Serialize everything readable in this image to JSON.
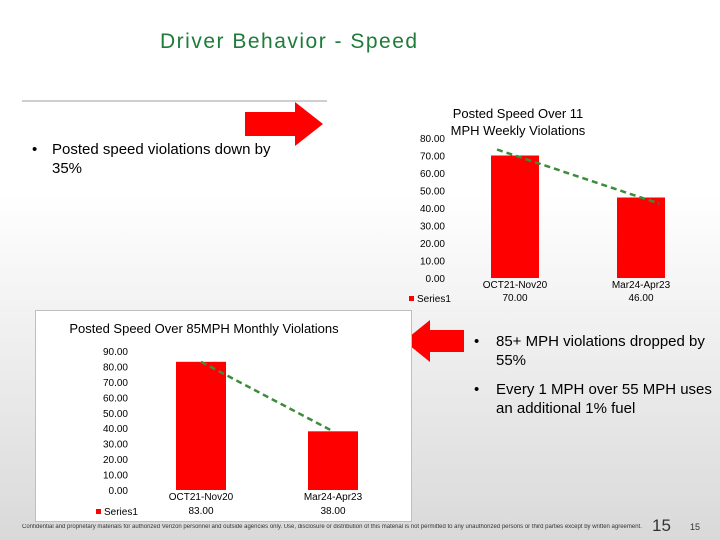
{
  "slide": {
    "title": "Driver Behavior - Speed",
    "bullets_top": [
      "Posted speed violations down by 35%"
    ],
    "bullets_right": [
      "85+ MPH violations dropped by 55%",
      "Every 1 MPH over 55 MPH uses an additional 1% fuel"
    ],
    "footer": "Confidential and proprietary materials for authorized Verizon personnel and outside agencies only. Use, disclosure or distribution of this material is not permitted to any unauthorized persons or third parties except by written agreement.",
    "page_number_large": "15",
    "page_number_small": "15"
  },
  "colors": {
    "title": "#1e7b3a",
    "bar": "#ff0000",
    "trendline": "#3c8c3c",
    "arrow": "#ff0000"
  },
  "chart_data": [
    {
      "type": "bar",
      "title": "Posted Speed Over 11 MPH Weekly Violations",
      "categories": [
        "OCT21-Nov20",
        "Mar24-Apr23"
      ],
      "series": [
        {
          "name": "Series1",
          "values": [
            70.0,
            46.0
          ]
        }
      ],
      "value_labels": [
        "70.00",
        "46.00"
      ],
      "ylim": [
        0,
        80
      ],
      "yticks": [
        "0.00",
        "10.00",
        "20.00",
        "30.00",
        "40.00",
        "50.00",
        "60.00",
        "70.00",
        "80.00"
      ],
      "trendline": "linear dashed",
      "legend": "bottom-left"
    },
    {
      "type": "bar",
      "title": "Posted Speed Over 85MPH Monthly Violations",
      "categories": [
        "OCT21-Nov20",
        "Mar24-Apr23"
      ],
      "series": [
        {
          "name": "Series1",
          "values": [
            83.0,
            38.0
          ]
        }
      ],
      "value_labels": [
        "83.00",
        "38.00"
      ],
      "ylim": [
        0,
        90
      ],
      "yticks": [
        "0.00",
        "10.00",
        "20.00",
        "30.00",
        "40.00",
        "50.00",
        "60.00",
        "70.00",
        "80.00",
        "90.00"
      ],
      "trendline": "linear dashed",
      "legend": "bottom-left"
    }
  ]
}
